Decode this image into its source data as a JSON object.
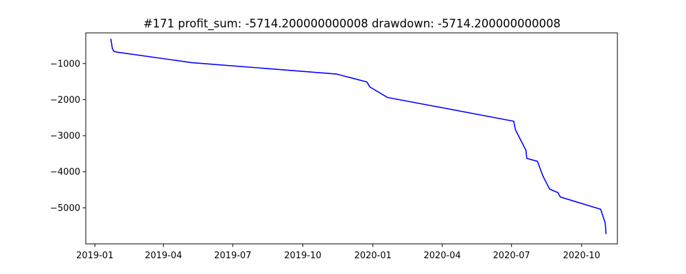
{
  "chart_data": {
    "type": "line",
    "title": "#171   profit_sum: -5714.200000000008 drawdown: -5714.200000000008",
    "xlabel": "",
    "ylabel": "",
    "grid": false,
    "legend": "none",
    "xlim": [
      "2018-12-20",
      "2020-11-17"
    ],
    "ylim": [
      -6000,
      -150
    ],
    "x_ticks": [
      "2019-01-01",
      "2019-04-01",
      "2019-07-01",
      "2019-10-01",
      "2020-01-01",
      "2020-04-01",
      "2020-07-01",
      "2020-10-01"
    ],
    "x_tick_labels": [
      "2019-01",
      "2019-04",
      "2019-07",
      "2019-10",
      "2020-01",
      "2020-04",
      "2020-07",
      "2020-10"
    ],
    "y_ticks": [
      -1000,
      -2000,
      -3000,
      -4000,
      -5000
    ],
    "y_tick_labels": [
      "−1000",
      "−2000",
      "−3000",
      "−4000",
      "−5000"
    ],
    "series": [
      {
        "color": "#0000ff",
        "points": [
          {
            "x": "2019-01-22",
            "y": -330
          },
          {
            "x": "2019-01-24",
            "y": -590
          },
          {
            "x": "2019-01-26",
            "y": -660
          },
          {
            "x": "2019-01-29",
            "y": -680
          },
          {
            "x": "2019-05-08",
            "y": -975
          },
          {
            "x": "2019-11-14",
            "y": -1290
          },
          {
            "x": "2019-12-24",
            "y": -1510
          },
          {
            "x": "2019-12-28",
            "y": -1650
          },
          {
            "x": "2020-01-20",
            "y": -1940
          },
          {
            "x": "2020-07-04",
            "y": -2600
          },
          {
            "x": "2020-07-06",
            "y": -2830
          },
          {
            "x": "2020-07-20",
            "y": -3410
          },
          {
            "x": "2020-07-21",
            "y": -3630
          },
          {
            "x": "2020-08-04",
            "y": -3710
          },
          {
            "x": "2020-08-11",
            "y": -4110
          },
          {
            "x": "2020-08-20",
            "y": -4480
          },
          {
            "x": "2020-08-31",
            "y": -4580
          },
          {
            "x": "2020-09-03",
            "y": -4700
          },
          {
            "x": "2020-10-26",
            "y": -5040
          },
          {
            "x": "2020-11-01",
            "y": -5420
          },
          {
            "x": "2020-11-02",
            "y": -5714.2
          }
        ]
      }
    ]
  }
}
